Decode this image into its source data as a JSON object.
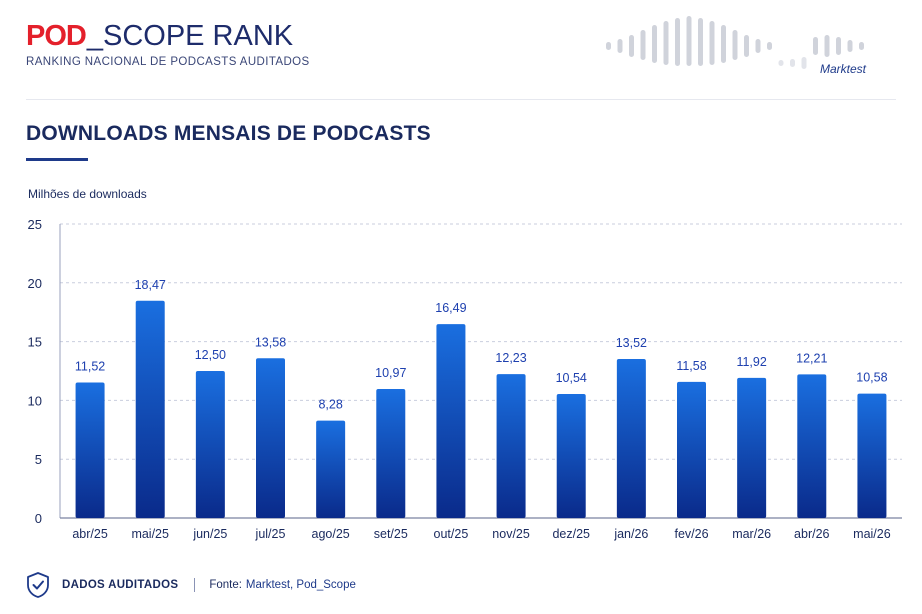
{
  "header": {
    "logo_pod": "POD",
    "logo_rest": "_SCOPE RANK",
    "subtitle": "RANKING NACIONAL DE PODCASTS AUDITADOS",
    "brand": "Marktest"
  },
  "title": "DOWNLOADS MENSAIS DE PODCASTS",
  "footer": {
    "audited_label": "DADOS AUDITADOS",
    "source_label": "Fonte:",
    "source_value": "Marktest, Pod_Scope"
  },
  "colors": {
    "bar_top": "#1a6fe0",
    "bar_bottom": "#0a2a8a",
    "label": "#1e40af",
    "logo_red": "#e4202b",
    "navy": "#1a2a5e"
  },
  "icons": {
    "shield": "shield-check-icon",
    "wave": "sound-wave-icon"
  },
  "chart_data": {
    "type": "bar",
    "title": "DOWNLOADS MENSAIS DE PODCASTS",
    "ylabel": "Milhões de downloads",
    "xlabel": "",
    "ylim": [
      0,
      25
    ],
    "yticks": [
      "0",
      "5",
      "10",
      "15",
      "20",
      "25"
    ],
    "grid": true,
    "categories": [
      "abr/25",
      "mai/25",
      "jun/25",
      "jul/25",
      "ago/25",
      "set/25",
      "out/25",
      "nov/25",
      "dez/25",
      "jan/26",
      "fev/26",
      "mar/26",
      "abr/26",
      "mai/26"
    ],
    "values": [
      11.52,
      18.47,
      12.5,
      13.58,
      8.28,
      10.97,
      16.49,
      12.23,
      10.54,
      13.52,
      11.58,
      11.92,
      12.21,
      10.58
    ],
    "value_labels": [
      "11,52",
      "18,47",
      "12,50",
      "13,58",
      "8,28",
      "10,97",
      "16,49",
      "12,23",
      "10,54",
      "13,52",
      "11,58",
      "11,92",
      "12,21",
      "10,58"
    ]
  }
}
